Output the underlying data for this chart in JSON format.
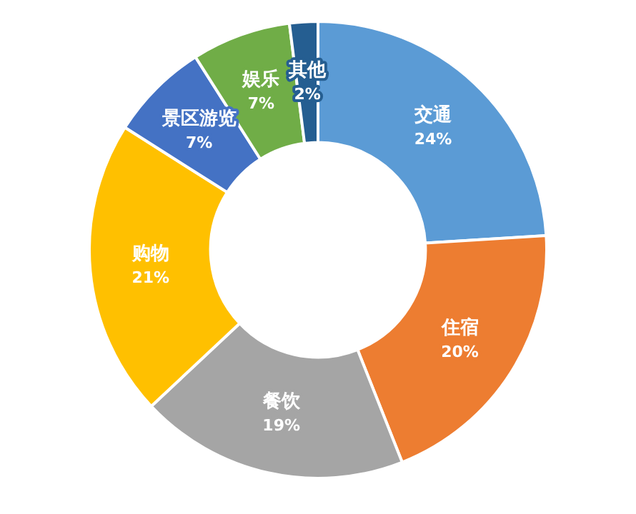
{
  "chart_data": {
    "type": "donut",
    "categories": [
      "交通",
      "住宿",
      "餐饮",
      "购物",
      "景区游览",
      "娱乐",
      "其他"
    ],
    "values": [
      24,
      20,
      19,
      21,
      7,
      7,
      2
    ],
    "value_labels": [
      "24%",
      "20%",
      "19%",
      "21%",
      "7%",
      "7%",
      "2%"
    ],
    "colors": [
      "#5b9bd5",
      "#ed7d31",
      "#a5a5a5",
      "#ffc000",
      "#4472c4",
      "#70ad47",
      "#255e91"
    ],
    "legend": false
  }
}
